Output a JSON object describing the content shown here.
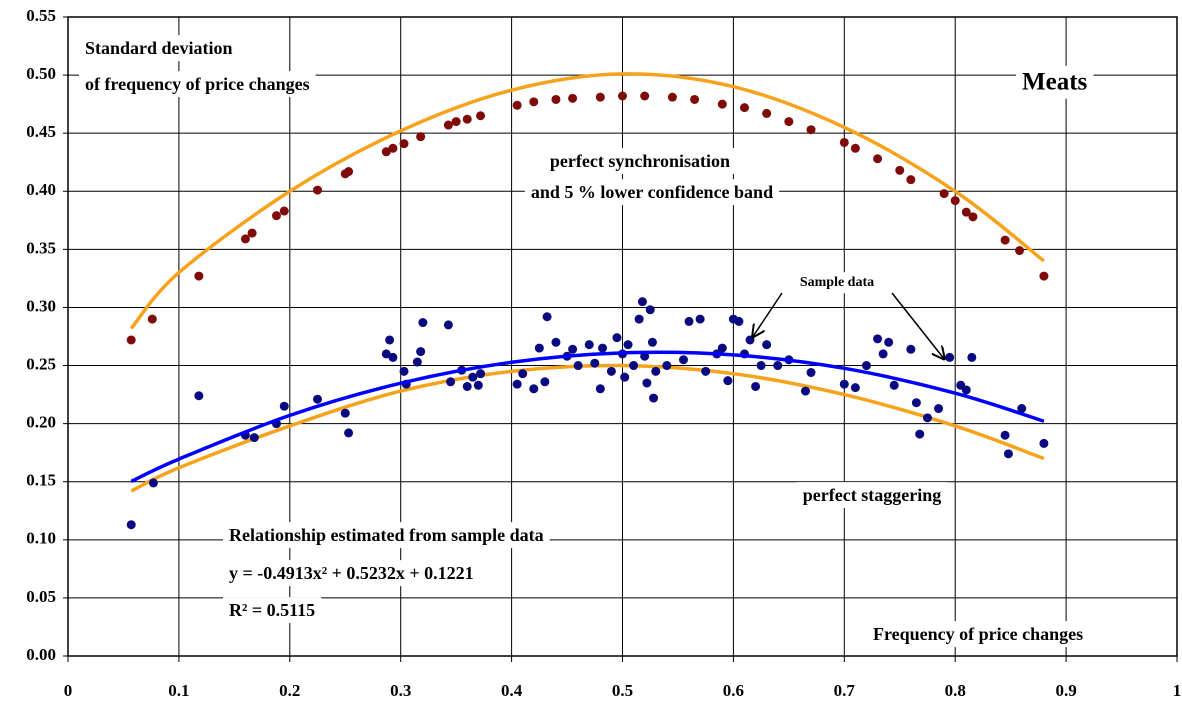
{
  "chart_data": {
    "type": "scatter",
    "title": "Meats",
    "ylabel": [
      "Standard deviation",
      "of frequency of price changes"
    ],
    "xlabel": "Frequency of price changes",
    "annotations": [
      "perfect synchronisation",
      "and 5 % lower confidence band",
      "Sample data",
      "perfect staggering",
      "Relationship estimated from sample data",
      "y = -0.4913x² + 0.5232x + 0.1221",
      "R² = 0.5115"
    ],
    "xlim": [
      0,
      1
    ],
    "ylim": [
      0,
      0.55
    ],
    "xticks": [
      0,
      0.1,
      0.2,
      0.3,
      0.4,
      0.5,
      0.6,
      0.7,
      0.8,
      0.9,
      1
    ],
    "yticks": [
      {
        "value": 0,
        "label": "0.00"
      },
      {
        "value": 0.05,
        "label": "0.05"
      },
      {
        "value": 0.1,
        "label": "0.10"
      },
      {
        "value": 0.15,
        "label": "0.15"
      },
      {
        "value": 0.2,
        "label": "0.20"
      },
      {
        "value": 0.25,
        "label": "0.25"
      },
      {
        "value": 0.3,
        "label": "0.30"
      },
      {
        "value": 0.35,
        "label": "0.35"
      },
      {
        "value": 0.4,
        "label": "0.40"
      },
      {
        "value": 0.45,
        "label": "0.45"
      },
      {
        "value": 0.5,
        "label": "0.50"
      },
      {
        "value": 0.55,
        "label": "0.55"
      }
    ],
    "grid": true,
    "series": [
      {
        "mode": "line",
        "color": "#f7a21b",
        "x": [
          0.057,
          0.1,
          0.2,
          0.3,
          0.4,
          0.5,
          0.6,
          0.7,
          0.8,
          0.88
        ],
        "values": [
          0.282,
          0.33,
          0.4,
          0.452,
          0.487,
          0.501,
          0.49,
          0.455,
          0.4,
          0.34
        ]
      },
      {
        "mode": "line",
        "color": "#f7a21b",
        "x": [
          0.057,
          0.1,
          0.2,
          0.3,
          0.4,
          0.5,
          0.6,
          0.7,
          0.8,
          0.88
        ],
        "values": [
          0.142,
          0.162,
          0.198,
          0.228,
          0.245,
          0.25,
          0.243,
          0.225,
          0.198,
          0.17
        ]
      },
      {
        "mode": "markers",
        "color": "#7f0a0a",
        "x": [
          0.057,
          0.076,
          0.118,
          0.16,
          0.166,
          0.188,
          0.195,
          0.225,
          0.25,
          0.253,
          0.287,
          0.293,
          0.303,
          0.318,
          0.343,
          0.35,
          0.36,
          0.372,
          0.405,
          0.42,
          0.44,
          0.455,
          0.48,
          0.5,
          0.52,
          0.545,
          0.565,
          0.59,
          0.61,
          0.63,
          0.65,
          0.67,
          0.7,
          0.71,
          0.73,
          0.75,
          0.76,
          0.79,
          0.8,
          0.81,
          0.816,
          0.845,
          0.858,
          0.88
        ],
        "values": [
          0.272,
          0.29,
          0.327,
          0.359,
          0.364,
          0.379,
          0.383,
          0.401,
          0.415,
          0.417,
          0.434,
          0.437,
          0.441,
          0.447,
          0.457,
          0.46,
          0.462,
          0.465,
          0.474,
          0.477,
          0.479,
          0.48,
          0.481,
          0.482,
          0.482,
          0.481,
          0.479,
          0.475,
          0.472,
          0.467,
          0.46,
          0.453,
          0.442,
          0.437,
          0.428,
          0.418,
          0.41,
          0.398,
          0.392,
          0.382,
          0.378,
          0.358,
          0.349,
          0.327
        ]
      },
      {
        "mode": "markers",
        "color": "#0a0a80",
        "x": [
          0.057,
          0.077,
          0.118,
          0.16,
          0.168,
          0.188,
          0.195,
          0.225,
          0.25,
          0.253,
          0.287,
          0.29,
          0.293,
          0.303,
          0.305,
          0.315,
          0.318,
          0.32,
          0.343,
          0.345,
          0.355,
          0.36,
          0.365,
          0.37,
          0.372,
          0.405,
          0.41,
          0.42,
          0.425,
          0.43,
          0.432,
          0.44,
          0.45,
          0.455,
          0.46,
          0.47,
          0.475,
          0.48,
          0.482,
          0.49,
          0.495,
          0.5,
          0.502,
          0.505,
          0.51,
          0.515,
          0.518,
          0.52,
          0.522,
          0.525,
          0.527,
          0.528,
          0.53,
          0.54,
          0.555,
          0.56,
          0.57,
          0.575,
          0.585,
          0.59,
          0.595,
          0.6,
          0.605,
          0.61,
          0.615,
          0.62,
          0.625,
          0.63,
          0.64,
          0.65,
          0.665,
          0.67,
          0.7,
          0.71,
          0.72,
          0.73,
          0.735,
          0.74,
          0.745,
          0.76,
          0.765,
          0.768,
          0.775,
          0.785,
          0.795,
          0.805,
          0.81,
          0.815,
          0.845,
          0.848,
          0.86,
          0.88
        ],
        "values": [
          0.113,
          0.149,
          0.224,
          0.19,
          0.188,
          0.2,
          0.215,
          0.221,
          0.209,
          0.192,
          0.26,
          0.272,
          0.257,
          0.245,
          0.234,
          0.253,
          0.262,
          0.287,
          0.285,
          0.236,
          0.246,
          0.232,
          0.24,
          0.233,
          0.243,
          0.234,
          0.243,
          0.23,
          0.265,
          0.236,
          0.292,
          0.27,
          0.258,
          0.264,
          0.25,
          0.268,
          0.252,
          0.23,
          0.265,
          0.245,
          0.274,
          0.26,
          0.24,
          0.268,
          0.25,
          0.29,
          0.305,
          0.258,
          0.235,
          0.298,
          0.27,
          0.222,
          0.245,
          0.25,
          0.255,
          0.288,
          0.29,
          0.245,
          0.26,
          0.265,
          0.237,
          0.29,
          0.288,
          0.26,
          0.272,
          0.232,
          0.25,
          0.268,
          0.25,
          0.255,
          0.228,
          0.244,
          0.234,
          0.231,
          0.25,
          0.273,
          0.26,
          0.27,
          0.233,
          0.264,
          0.218,
          0.191,
          0.205,
          0.213,
          0.257,
          0.233,
          0.229,
          0.257,
          0.19,
          0.174,
          0.213,
          0.183
        ]
      },
      {
        "mode": "line",
        "color": "#0000ff",
        "x": [
          0.057,
          0.1,
          0.2,
          0.3,
          0.4,
          0.5,
          0.6,
          0.7,
          0.8,
          0.88
        ],
        "values": [
          0.1503,
          0.1695,
          0.2071,
          0.2348,
          0.2528,
          0.2609,
          0.2592,
          0.2476,
          0.2262,
          0.2021
        ]
      }
    ]
  }
}
